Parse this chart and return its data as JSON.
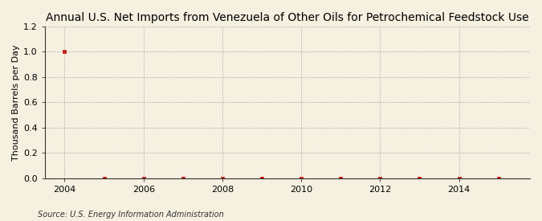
{
  "title": "Annual U.S. Net Imports from Venezuela of Other Oils for Petrochemical Feedstock Use",
  "ylabel": "Thousand Barrels per Day",
  "source": "Source: U.S. Energy Information Administration",
  "years": [
    2004,
    2005,
    2006,
    2007,
    2008,
    2009,
    2010,
    2011,
    2012,
    2013,
    2014,
    2015
  ],
  "values": [
    1.0,
    0.0,
    0.0,
    0.0,
    0.0,
    0.0,
    0.0,
    0.0,
    0.0,
    0.0,
    0.0,
    0.0
  ],
  "xlim": [
    2003.5,
    2015.8
  ],
  "ylim": [
    0.0,
    1.2
  ],
  "yticks": [
    0.0,
    0.2,
    0.4,
    0.6,
    0.8,
    1.0,
    1.2
  ],
  "xticks": [
    2004,
    2006,
    2008,
    2010,
    2012,
    2014
  ],
  "marker_color": "#cc0000",
  "bg_color": "#f5f0e0",
  "grid_color": "#888888",
  "title_fontsize": 10,
  "label_fontsize": 8,
  "tick_fontsize": 8,
  "source_fontsize": 7
}
